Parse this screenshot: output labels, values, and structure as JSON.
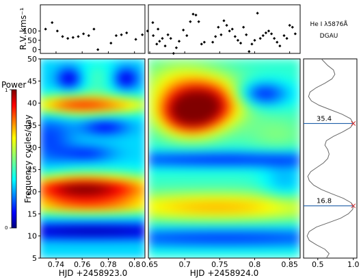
{
  "chart_data": {
    "type": "heatmap",
    "title": "He I λ5876Å",
    "star": "DGAU",
    "rv_panel": {
      "ylabel": "R.V. kms⁻¹",
      "yticks": [
        0,
        50,
        100
      ],
      "ylim": [
        -20,
        240
      ],
      "left_points": [
        [
          0.732,
          110
        ],
        [
          0.737,
          145
        ],
        [
          0.741,
          100
        ],
        [
          0.745,
          70
        ],
        [
          0.749,
          60
        ],
        [
          0.753,
          65
        ],
        [
          0.757,
          70
        ],
        [
          0.761,
          85
        ],
        [
          0.765,
          75
        ],
        [
          0.769,
          110
        ],
        [
          0.772,
          0
        ],
        [
          0.782,
          35
        ],
        [
          0.786,
          75
        ],
        [
          0.79,
          80
        ],
        [
          0.794,
          90
        ],
        [
          0.801,
          55
        ],
        [
          0.806,
          80
        ],
        [
          0.81,
          100
        ],
        [
          0.814,
          145
        ],
        [
          0.818,
          110
        ]
      ],
      "right_points": [
        [
          0.655,
          75
        ],
        [
          0.66,
          30
        ],
        [
          0.664,
          45
        ],
        [
          0.668,
          60
        ],
        [
          0.672,
          20
        ],
        [
          0.676,
          80
        ],
        [
          0.68,
          60
        ],
        [
          0.684,
          -20
        ],
        [
          0.688,
          10
        ],
        [
          0.692,
          45
        ],
        [
          0.698,
          105
        ],
        [
          0.703,
          75
        ],
        [
          0.708,
          150
        ],
        [
          0.712,
          190
        ],
        [
          0.716,
          185
        ],
        [
          0.72,
          150
        ],
        [
          0.724,
          30
        ],
        [
          0.728,
          40
        ],
        [
          0.74,
          40
        ],
        [
          0.744,
          70
        ],
        [
          0.748,
          120
        ],
        [
          0.752,
          80
        ],
        [
          0.756,
          155
        ],
        [
          0.76,
          130
        ],
        [
          0.764,
          100
        ],
        [
          0.768,
          110
        ],
        [
          0.772,
          70
        ],
        [
          0.776,
          50
        ],
        [
          0.78,
          35
        ],
        [
          0.784,
          120
        ],
        [
          0.788,
          80
        ],
        [
          0.792,
          -10
        ],
        [
          0.796,
          30
        ],
        [
          0.8,
          50
        ],
        [
          0.804,
          195
        ],
        [
          0.808,
          60
        ],
        [
          0.812,
          75
        ],
        [
          0.816,
          90
        ],
        [
          0.82,
          100
        ],
        [
          0.824,
          85
        ],
        [
          0.828,
          60
        ],
        [
          0.832,
          40
        ],
        [
          0.836,
          20
        ],
        [
          0.842,
          75
        ],
        [
          0.846,
          60
        ],
        [
          0.85,
          130
        ],
        [
          0.854,
          120
        ],
        [
          0.858,
          85
        ]
      ]
    },
    "left_panel": {
      "xlabel": "HJD +2458923.0",
      "xlim": [
        0.728,
        0.808
      ],
      "xticks": [
        0.74,
        0.76,
        0.78,
        0.8
      ],
      "xtick_labels": [
        "0.74",
        "0.76",
        "0.78",
        "0.8"
      ]
    },
    "right_panel": {
      "xlabel": "HJD +2458924.0",
      "xlim": [
        0.648,
        0.865
      ],
      "xticks": [
        0.65,
        0.7,
        0.75,
        0.8,
        0.85
      ],
      "xtick_labels": [
        "0.65",
        "0.7",
        "0.75",
        "0.8",
        "0.85"
      ]
    },
    "frequency_axis": {
      "ylabel": "Frequency cycles/day",
      "ylim": [
        5,
        50
      ],
      "yticks": [
        5,
        10,
        15,
        20,
        25,
        30,
        35,
        40,
        45,
        50
      ]
    },
    "colorbar": {
      "label": "Power",
      "range": [
        0,
        1
      ],
      "tick_labels": [
        "1",
        "0"
      ]
    },
    "periodogram": {
      "xlim": [
        0.3,
        1.05
      ],
      "xticks": [
        0.5,
        1.0
      ],
      "xtick_labels": [
        "0.5",
        "1.0"
      ],
      "peaks": [
        {
          "freq": 35.4,
          "label": "35.4"
        },
        {
          "freq": 16.8,
          "label": "16.8"
        }
      ],
      "curve": [
        [
          5,
          0.62
        ],
        [
          6,
          0.66
        ],
        [
          7,
          0.6
        ],
        [
          8,
          0.48
        ],
        [
          9,
          0.38
        ],
        [
          10,
          0.35
        ],
        [
          11,
          0.38
        ],
        [
          12,
          0.48
        ],
        [
          13,
          0.65
        ],
        [
          14,
          0.82
        ],
        [
          15,
          0.93
        ],
        [
          16,
          0.99
        ],
        [
          16.8,
          1.0
        ],
        [
          17.5,
          0.97
        ],
        [
          18.5,
          0.86
        ],
        [
          19.5,
          0.7
        ],
        [
          20.5,
          0.55
        ],
        [
          21.5,
          0.44
        ],
        [
          22.5,
          0.38
        ],
        [
          23.5,
          0.36
        ],
        [
          24.5,
          0.4
        ],
        [
          25.5,
          0.49
        ],
        [
          26.5,
          0.58
        ],
        [
          27.5,
          0.64
        ],
        [
          28.5,
          0.66
        ],
        [
          29.5,
          0.64
        ],
        [
          30.5,
          0.6
        ],
        [
          31.5,
          0.62
        ],
        [
          32.5,
          0.72
        ],
        [
          33.5,
          0.85
        ],
        [
          34.5,
          0.96
        ],
        [
          35.4,
          1.0
        ],
        [
          36.5,
          0.96
        ],
        [
          37.5,
          0.84
        ],
        [
          38.5,
          0.68
        ],
        [
          39.5,
          0.52
        ],
        [
          40.5,
          0.41
        ],
        [
          41.5,
          0.37
        ],
        [
          42.5,
          0.39
        ],
        [
          43.5,
          0.48
        ],
        [
          44.5,
          0.6
        ],
        [
          45.5,
          0.7
        ],
        [
          46.5,
          0.74
        ],
        [
          47.5,
          0.72
        ],
        [
          48.5,
          0.64
        ],
        [
          50,
          0.55
        ]
      ]
    }
  }
}
